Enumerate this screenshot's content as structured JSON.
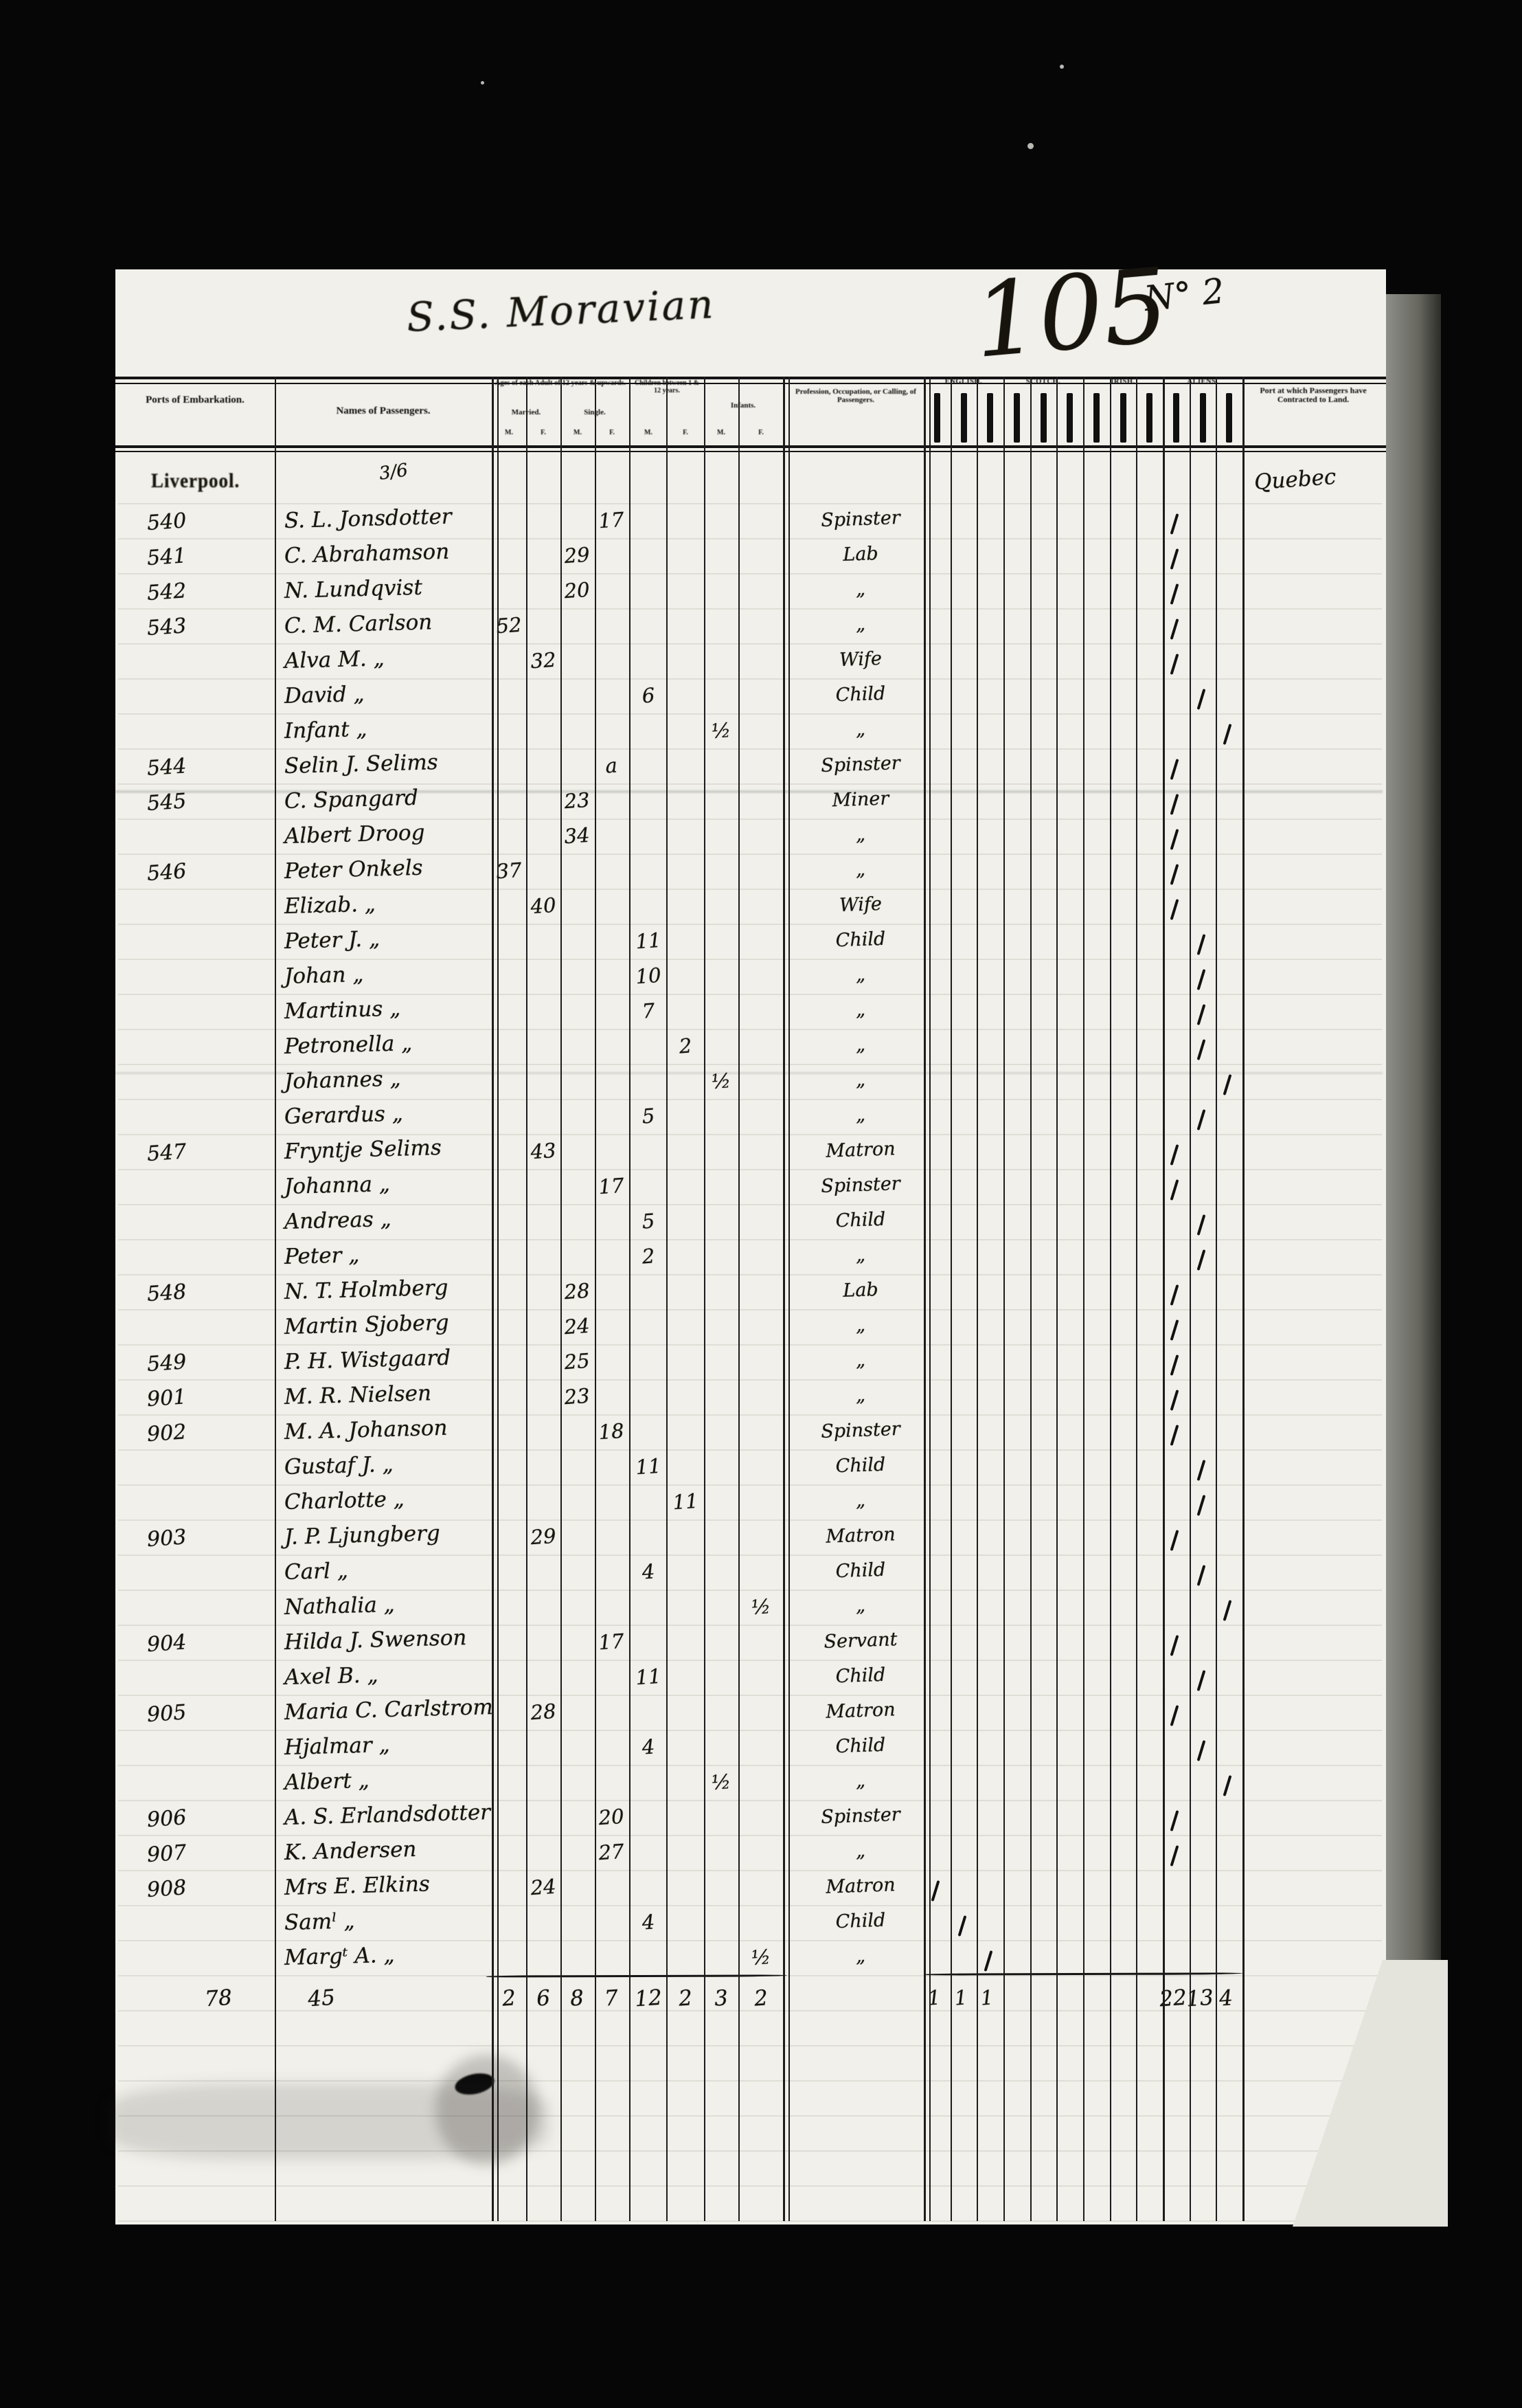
{
  "document": {
    "ship_title": "S.S. Moravian",
    "page_number": "105",
    "page_annotation": "N° 2",
    "embarkation_port": "Liverpool.",
    "names_annotation": "3/6",
    "contracted_port": "Quebec"
  },
  "header": {
    "ports": "Ports of Embarkation.",
    "names": "Names of Passengers.",
    "ages_group": "Ages of each Adult of 12 years & upwards.",
    "married": "Married.",
    "single": "Single.",
    "children": "Children between 1 & 12 years.",
    "infants": "Infants.",
    "male_abbr": "M.",
    "female_abbr": "F.",
    "profession": "Profession, Occupation, or Calling, of Passengers.",
    "nationalities": [
      "ENGLISH.",
      "SCOTCH.",
      "IRISH.",
      "ALIENS."
    ],
    "contracted": "Port at which Passengers have Contracted to Land."
  },
  "passengers": [
    {
      "no": "540",
      "name": "S. L. Jonsdotter",
      "single_f": "17",
      "occupation": "Spinster",
      "tally": "aliens_adults"
    },
    {
      "no": "541",
      "name": "C. Abrahamson",
      "single_m": "29",
      "occupation": "Lab",
      "tally": "aliens_adults"
    },
    {
      "no": "542",
      "name": "N. Lundqvist",
      "single_m": "20",
      "occupation": "„",
      "tally": "aliens_adults"
    },
    {
      "no": "543",
      "name": "C. M. Carlson",
      "married_m": "52",
      "occupation": "„",
      "tally": "aliens_adults"
    },
    {
      "no": "",
      "name": "Alva M.  „",
      "married_f": "32",
      "occupation": "Wife",
      "tally": "aliens_adults"
    },
    {
      "no": "",
      "name": "David  „",
      "child_m": "6",
      "occupation": "Child",
      "tally": "aliens_children"
    },
    {
      "no": "",
      "name": "Infant  „",
      "infant_m": "½",
      "occupation": "„",
      "tally": "aliens_infants"
    },
    {
      "no": "544",
      "name": "Selin J. Selims",
      "single_f": "a",
      "occupation": "Spinster",
      "tally": "aliens_adults"
    },
    {
      "no": "545",
      "name": "C. Spangard",
      "single_m": "23",
      "occupation": "Miner",
      "tally": "aliens_adults"
    },
    {
      "no": "",
      "name": "Albert Droog",
      "single_m": "34",
      "occupation": "„",
      "tally": "aliens_adults"
    },
    {
      "no": "546",
      "name": "Peter Onkels",
      "married_m": "37",
      "occupation": "„",
      "tally": "aliens_adults"
    },
    {
      "no": "",
      "name": "Elizab.  „",
      "married_f": "40",
      "occupation": "Wife",
      "tally": "aliens_adults"
    },
    {
      "no": "",
      "name": "Peter J.  „",
      "child_m": "11",
      "occupation": "Child",
      "tally": "aliens_children"
    },
    {
      "no": "",
      "name": "Johan  „",
      "child_m": "10",
      "occupation": "„",
      "tally": "aliens_children"
    },
    {
      "no": "",
      "name": "Martinus  „",
      "child_m": "7",
      "occupation": "„",
      "tally": "aliens_children"
    },
    {
      "no": "",
      "name": "Petronella  „",
      "child_f": "2",
      "occupation": "„",
      "tally": "aliens_children"
    },
    {
      "no": "",
      "name": "Johannes  „",
      "infant_m": "½",
      "occupation": "„",
      "tally": "aliens_infants"
    },
    {
      "no": "",
      "name": "Gerardus  „",
      "child_m": "5",
      "occupation": "„",
      "tally": "aliens_children"
    },
    {
      "no": "547",
      "name": "Fryntje Selims",
      "married_f": "43",
      "occupation": "Matron",
      "tally": "aliens_adults"
    },
    {
      "no": "",
      "name": "Johanna  „",
      "single_f": "17",
      "occupation": "Spinster",
      "tally": "aliens_adults"
    },
    {
      "no": "",
      "name": "Andreas  „",
      "child_m": "5",
      "occupation": "Child",
      "tally": "aliens_children"
    },
    {
      "no": "",
      "name": "Peter  „",
      "child_m": "2",
      "occupation": "„",
      "tally": "aliens_children"
    },
    {
      "no": "548",
      "name": "N. T. Holmberg",
      "single_m": "28",
      "occupation": "Lab",
      "tally": "aliens_adults"
    },
    {
      "no": "",
      "name": "Martin Sjoberg",
      "single_m": "24",
      "occupation": "„",
      "tally": "aliens_adults"
    },
    {
      "no": "549",
      "name": "P. H. Wistgaard",
      "single_m": "25",
      "occupation": "„",
      "tally": "aliens_adults"
    },
    {
      "no": "901",
      "name": "M. R. Nielsen",
      "single_m": "23",
      "occupation": "„",
      "tally": "aliens_adults"
    },
    {
      "no": "902",
      "name": "M. A. Johanson",
      "single_f": "18",
      "occupation": "Spinster",
      "tally": "aliens_adults"
    },
    {
      "no": "",
      "name": "Gustaf J.  „",
      "child_m": "11",
      "occupation": "Child",
      "tally": "aliens_children"
    },
    {
      "no": "",
      "name": "Charlotte  „",
      "child_f": "11",
      "occupation": "„",
      "tally": "aliens_children"
    },
    {
      "no": "903",
      "name": "J. P. Ljungberg",
      "married_f": "29",
      "occupation": "Matron",
      "tally": "aliens_adults"
    },
    {
      "no": "",
      "name": "Carl  „",
      "child_m": "4",
      "occupation": "Child",
      "tally": "aliens_children"
    },
    {
      "no": "",
      "name": "Nathalia  „",
      "infant_f": "½",
      "occupation": "„",
      "tally": "aliens_infants"
    },
    {
      "no": "904",
      "name": "Hilda J. Swenson",
      "single_f": "17",
      "occupation": "Servant",
      "tally": "aliens_adults"
    },
    {
      "no": "",
      "name": "Axel B.  „",
      "child_m": "11",
      "occupation": "Child",
      "tally": "aliens_children"
    },
    {
      "no": "905",
      "name": "Maria C. Carlstrom",
      "married_f": "28",
      "occupation": "Matron",
      "tally": "aliens_adults"
    },
    {
      "no": "",
      "name": "Hjalmar  „",
      "child_m": "4",
      "occupation": "Child",
      "tally": "aliens_children"
    },
    {
      "no": "",
      "name": "Albert  „",
      "infant_m": "½",
      "occupation": "„",
      "tally": "aliens_infants"
    },
    {
      "no": "906",
      "name": "A. S. Erlandsdotter",
      "single_f": "20",
      "occupation": "Spinster",
      "tally": "aliens_adults"
    },
    {
      "no": "907",
      "name": "K. Andersen",
      "single_f": "27",
      "occupation": "„",
      "tally": "aliens_adults"
    },
    {
      "no": "908",
      "name": "Mrs E. Elkins",
      "married_f": "24",
      "occupation": "Matron",
      "tally": "english_adults"
    },
    {
      "no": "",
      "name": "Samˡ  „",
      "child_m": "4",
      "occupation": "Child",
      "tally": "english_children"
    },
    {
      "no": "",
      "name": "Margᵗ A.  „",
      "infant_f": "½",
      "occupation": "„",
      "tally": "english_infants"
    }
  ],
  "totals": {
    "ports": "78",
    "names": "45",
    "married_m": "2",
    "married_f": "6",
    "single_m": "8",
    "single_f": "7",
    "child_m": "12",
    "child_f": "2",
    "infant_m": "3",
    "infant_f": "2",
    "english": [
      "1",
      "1",
      "1"
    ],
    "aliens": [
      "22",
      "13",
      "4"
    ]
  }
}
